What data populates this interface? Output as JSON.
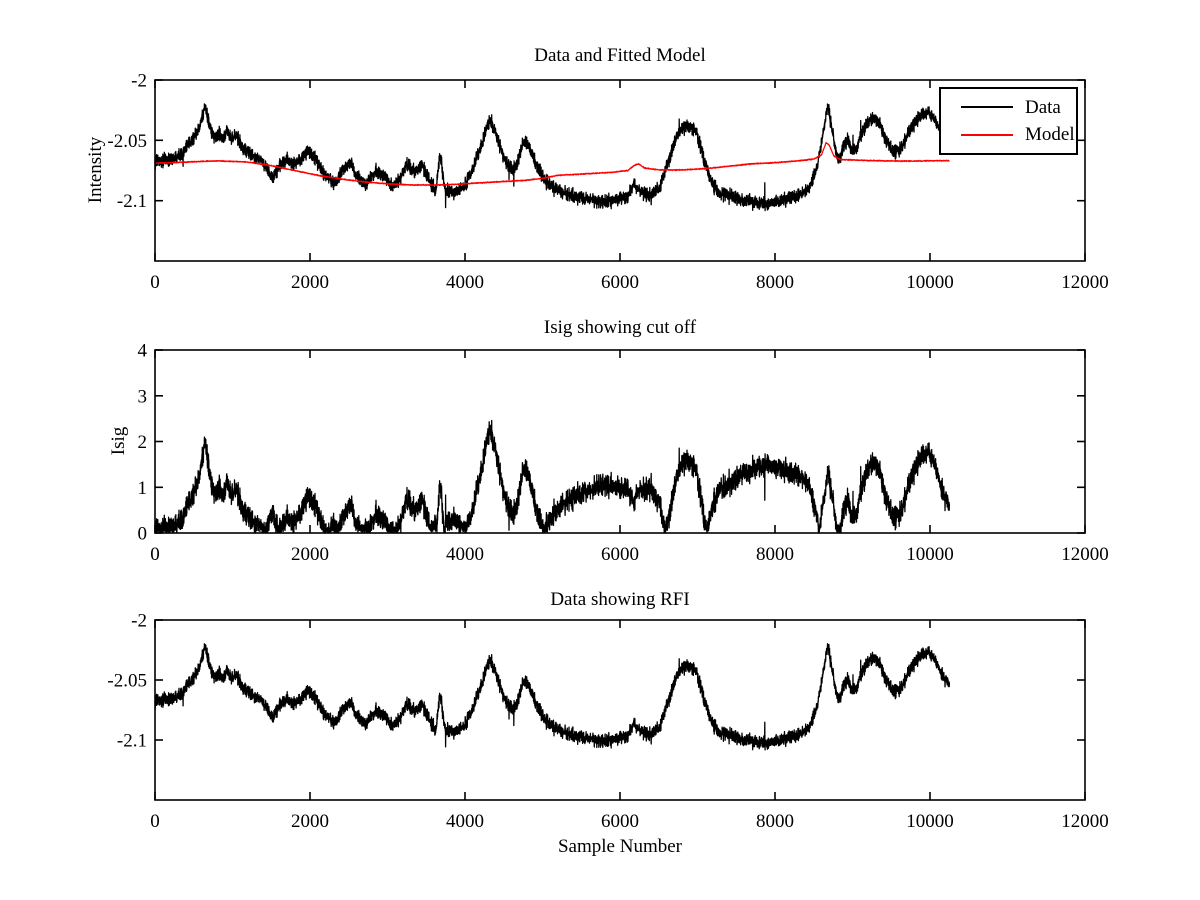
{
  "figure": {
    "background": "#ffffff",
    "line_black": "#000000",
    "accent_red": "#ff0000"
  },
  "chart_data": [
    {
      "type": "line",
      "title": "Data and Fitted Model",
      "xlabel": "",
      "ylabel": "Intensity",
      "xlim": [
        0,
        12000
      ],
      "ylim": [
        -2.15,
        -2.0
      ],
      "xticks": [
        0,
        2000,
        4000,
        6000,
        8000,
        10000,
        12000
      ],
      "yticks": [
        -2,
        -2.05,
        -2.1
      ],
      "grid": false,
      "x_end": 10250,
      "legend": {
        "position": "top-right",
        "entries": [
          {
            "label": "Data",
            "color": "#000000"
          },
          {
            "label": "Model",
            "color": "#ff0000"
          }
        ]
      },
      "series": [
        {
          "name": "Data",
          "color": "#000000",
          "seed": 1234,
          "noise_amp": 0.008,
          "spike_prob": 0.004,
          "spike_amp": 0.02,
          "keypoints": [
            [
              0,
              -2.068
            ],
            [
              200,
              -2.066
            ],
            [
              350,
              -2.06
            ],
            [
              480,
              -2.05
            ],
            [
              570,
              -2.04
            ],
            [
              620,
              -2.028
            ],
            [
              650,
              -2.022
            ],
            [
              680,
              -2.03
            ],
            [
              720,
              -2.042
            ],
            [
              780,
              -2.05
            ],
            [
              830,
              -2.043
            ],
            [
              880,
              -2.05
            ],
            [
              930,
              -2.042
            ],
            [
              990,
              -2.05
            ],
            [
              1040,
              -2.045
            ],
            [
              1120,
              -2.055
            ],
            [
              1250,
              -2.063
            ],
            [
              1350,
              -2.064
            ],
            [
              1450,
              -2.075
            ],
            [
              1520,
              -2.082
            ],
            [
              1600,
              -2.072
            ],
            [
              1700,
              -2.066
            ],
            [
              1800,
              -2.07
            ],
            [
              1900,
              -2.064
            ],
            [
              1980,
              -2.059
            ],
            [
              2080,
              -2.066
            ],
            [
              2200,
              -2.08
            ],
            [
              2320,
              -2.086
            ],
            [
              2430,
              -2.074
            ],
            [
              2520,
              -2.069
            ],
            [
              2620,
              -2.081
            ],
            [
              2720,
              -2.086
            ],
            [
              2850,
              -2.076
            ],
            [
              2950,
              -2.08
            ],
            [
              3050,
              -2.088
            ],
            [
              3150,
              -2.083
            ],
            [
              3250,
              -2.069
            ],
            [
              3350,
              -2.077
            ],
            [
              3450,
              -2.07
            ],
            [
              3550,
              -2.085
            ],
            [
              3620,
              -2.092
            ],
            [
              3680,
              -2.06
            ],
            [
              3740,
              -2.09
            ],
            [
              3850,
              -2.094
            ],
            [
              3980,
              -2.089
            ],
            [
              4080,
              -2.077
            ],
            [
              4180,
              -2.06
            ],
            [
              4280,
              -2.04
            ],
            [
              4330,
              -2.033
            ],
            [
              4400,
              -2.045
            ],
            [
              4490,
              -2.062
            ],
            [
              4600,
              -2.075
            ],
            [
              4680,
              -2.068
            ],
            [
              4760,
              -2.05
            ],
            [
              4820,
              -2.053
            ],
            [
              4900,
              -2.068
            ],
            [
              5000,
              -2.08
            ],
            [
              5100,
              -2.088
            ],
            [
              5250,
              -2.093
            ],
            [
              5450,
              -2.097
            ],
            [
              5650,
              -2.1
            ],
            [
              5900,
              -2.1
            ],
            [
              6100,
              -2.096
            ],
            [
              6180,
              -2.086
            ],
            [
              6260,
              -2.093
            ],
            [
              6400,
              -2.096
            ],
            [
              6520,
              -2.088
            ],
            [
              6620,
              -2.068
            ],
            [
              6700,
              -2.052
            ],
            [
              6800,
              -2.04
            ],
            [
              6900,
              -2.038
            ],
            [
              6980,
              -2.042
            ],
            [
              7040,
              -2.055
            ],
            [
              7100,
              -2.07
            ],
            [
              7180,
              -2.085
            ],
            [
              7300,
              -2.094
            ],
            [
              7500,
              -2.098
            ],
            [
              7700,
              -2.101
            ],
            [
              7900,
              -2.103
            ],
            [
              8100,
              -2.1
            ],
            [
              8300,
              -2.096
            ],
            [
              8450,
              -2.089
            ],
            [
              8550,
              -2.07
            ],
            [
              8620,
              -2.045
            ],
            [
              8680,
              -2.021
            ],
            [
              8720,
              -2.035
            ],
            [
              8770,
              -2.055
            ],
            [
              8820,
              -2.068
            ],
            [
              8880,
              -2.055
            ],
            [
              8940,
              -2.05
            ],
            [
              9000,
              -2.06
            ],
            [
              9060,
              -2.055
            ],
            [
              9120,
              -2.045
            ],
            [
              9200,
              -2.034
            ],
            [
              9280,
              -2.032
            ],
            [
              9360,
              -2.038
            ],
            [
              9440,
              -2.05
            ],
            [
              9530,
              -2.06
            ],
            [
              9620,
              -2.057
            ],
            [
              9700,
              -2.047
            ],
            [
              9800,
              -2.035
            ],
            [
              9900,
              -2.028
            ],
            [
              9980,
              -2.026
            ],
            [
              10060,
              -2.033
            ],
            [
              10150,
              -2.045
            ],
            [
              10250,
              -2.053
            ]
          ]
        },
        {
          "name": "Model",
          "color": "#ff0000",
          "seed": 99,
          "noise_amp": 0.0006,
          "spike_prob": 0,
          "spike_amp": 0,
          "keypoints": [
            [
              0,
              -2.069
            ],
            [
              400,
              -2.068
            ],
            [
              800,
              -2.067
            ],
            [
              1200,
              -2.068
            ],
            [
              1500,
              -2.071
            ],
            [
              1800,
              -2.075
            ],
            [
              2100,
              -2.079
            ],
            [
              2400,
              -2.082
            ],
            [
              2700,
              -2.0845
            ],
            [
              3000,
              -2.086
            ],
            [
              3300,
              -2.087
            ],
            [
              3700,
              -2.087
            ],
            [
              4000,
              -2.086
            ],
            [
              4400,
              -2.0845
            ],
            [
              4800,
              -2.083
            ],
            [
              5000,
              -2.0815
            ],
            [
              5200,
              -2.079
            ],
            [
              5500,
              -2.078
            ],
            [
              5900,
              -2.0765
            ],
            [
              6100,
              -2.075
            ],
            [
              6180,
              -2.071
            ],
            [
              6240,
              -2.0695
            ],
            [
              6320,
              -2.073
            ],
            [
              6500,
              -2.0745
            ],
            [
              6800,
              -2.0745
            ],
            [
              7100,
              -2.0735
            ],
            [
              7400,
              -2.0715
            ],
            [
              7700,
              -2.0695
            ],
            [
              8000,
              -2.0685
            ],
            [
              8300,
              -2.067
            ],
            [
              8500,
              -2.0655
            ],
            [
              8600,
              -2.062
            ],
            [
              8660,
              -2.052
            ],
            [
              8700,
              -2.054
            ],
            [
              8760,
              -2.063
            ],
            [
              8850,
              -2.066
            ],
            [
              9100,
              -2.0665
            ],
            [
              9400,
              -2.067
            ],
            [
              9700,
              -2.0672
            ],
            [
              10000,
              -2.067
            ],
            [
              10250,
              -2.0668
            ]
          ]
        }
      ]
    },
    {
      "type": "line",
      "title": "Isig showing cut off",
      "xlabel": "",
      "ylabel": "Isig",
      "xlim": [
        0,
        12000
      ],
      "ylim": [
        0,
        4
      ],
      "xticks": [
        0,
        2000,
        4000,
        6000,
        8000,
        10000,
        12000
      ],
      "yticks": [
        0,
        1,
        2,
        3,
        4
      ],
      "grid": false,
      "x_end": 10250,
      "series": [
        {
          "name": "Isig",
          "color": "#000000",
          "derived": {
            "op": "abs_diff_scaled",
            "data_ref": [
              0,
              0
            ],
            "model_ref": [
              0,
              1
            ],
            "scale": 44,
            "clip_min": 0
          }
        }
      ]
    },
    {
      "type": "line",
      "title": "Data showing RFI",
      "xlabel": "Sample Number",
      "ylabel": "",
      "xlim": [
        0,
        12000
      ],
      "ylim": [
        -2.15,
        -2.0
      ],
      "xticks": [
        0,
        2000,
        4000,
        6000,
        8000,
        10000,
        12000
      ],
      "yticks": [
        -2,
        -2.05,
        -2.1
      ],
      "grid": false,
      "x_end": 10250,
      "series": [
        {
          "name": "Data",
          "color": "#000000",
          "use_series": {
            "chart": 0,
            "series": 0
          }
        }
      ]
    }
  ]
}
